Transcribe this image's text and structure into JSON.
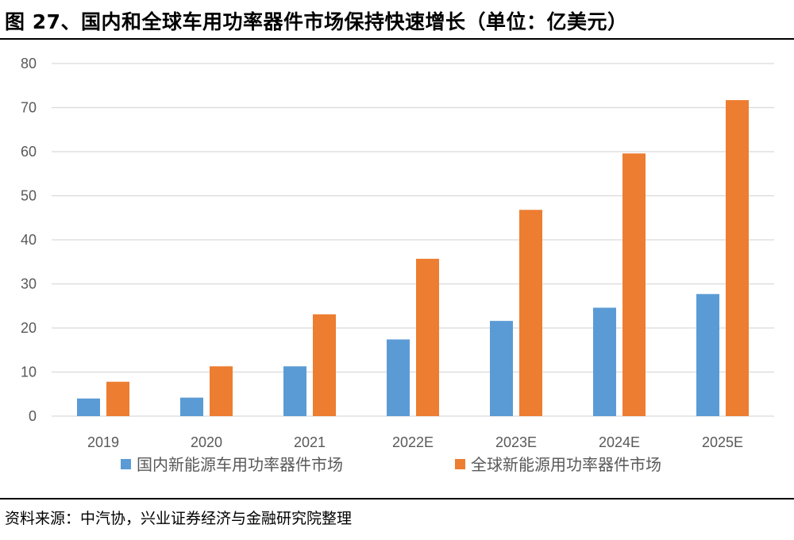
{
  "title": "图 27、国内和全球车用功率器件市场保持快速增长（单位：亿美元）",
  "source": "资料来源：中汽协，兴业证券经济与金融研究院整理",
  "colors": {
    "domestic": "#5b9bd5",
    "global": "#ed7d31",
    "grid": "#d9d9d9",
    "tick": "#595959"
  },
  "chart_data": {
    "type": "bar",
    "categories": [
      "2019",
      "2020",
      "2021",
      "2022E",
      "2023E",
      "2024E",
      "2025E"
    ],
    "series": [
      {
        "name": "国内新能源车用功率器件市场",
        "values": [
          4.0,
          4.2,
          11.3,
          17.4,
          21.6,
          24.6,
          27.7
        ]
      },
      {
        "name": "全球新能源用功率器件市场",
        "values": [
          7.8,
          11.3,
          23.1,
          35.7,
          46.8,
          59.6,
          71.7
        ]
      }
    ],
    "ylim": [
      0,
      80
    ],
    "yticks": [
      0,
      10,
      20,
      30,
      40,
      50,
      60,
      70,
      80
    ],
    "grid": true,
    "legend_position": "bottom"
  }
}
